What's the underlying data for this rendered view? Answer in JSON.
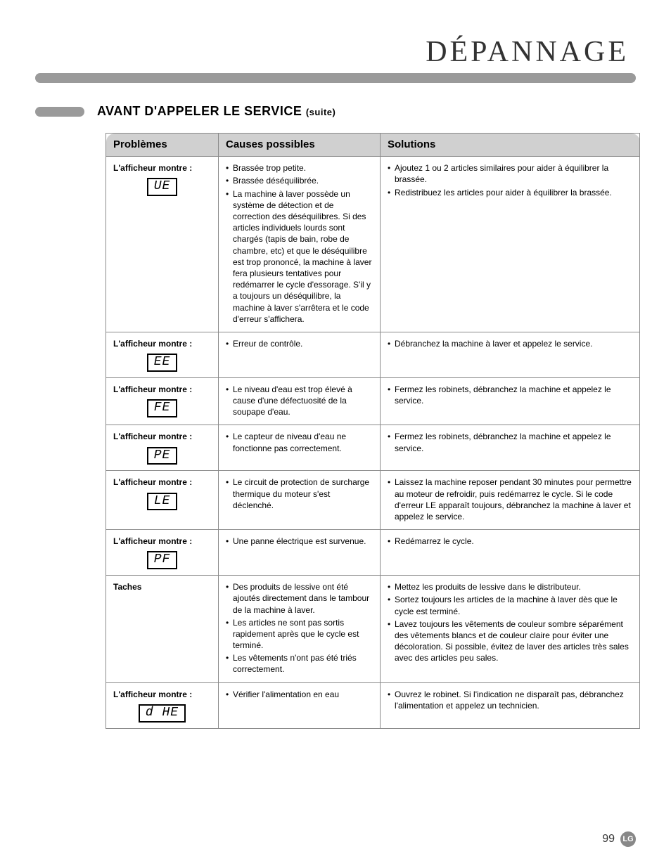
{
  "page_title": "DÉPANNAGE",
  "section_title": "AVANT D'APPELER LE SERVICE",
  "section_suffix": "(suite)",
  "headers": {
    "problems": "Problèmes",
    "causes": "Causes possibles",
    "solutions": "Solutions"
  },
  "label_display_shows": "L'afficheur montre :",
  "rows": [
    {
      "problem_label": "L'afficheur montre :",
      "error_code": "UE",
      "causes": [
        "Brassée trop petite.",
        "Brassée déséquilibrée.",
        "La machine à laver possède un système de détection et de correction des déséquilibres. Si des articles individuels lourds sont chargés (tapis de bain, robe de chambre, etc) et que le déséquilibre est trop prononcé, la machine à laver fera plusieurs tentatives pour redémarrer le cycle d'essorage. S'il y a toujours un déséquilibre, la machine à laver s'arrêtera et le code d'erreur s'affichera."
      ],
      "solutions": [
        "Ajoutez 1 ou 2 articles similaires pour aider à équilibrer la brassée.",
        "Redistribuez les articles pour aider à équilibrer la brassée."
      ]
    },
    {
      "problem_label": "L'afficheur montre :",
      "error_code": "EE",
      "causes": [
        "Erreur de contrôle."
      ],
      "solutions": [
        "Débranchez la machine à laver et appelez le service."
      ]
    },
    {
      "problem_label": "L'afficheur montre :",
      "error_code": "FE",
      "causes": [
        "Le niveau d'eau est trop élevé à cause d'une défectuosité de la soupape d'eau."
      ],
      "solutions": [
        "Fermez les robinets, débranchez la machine et appelez le service."
      ]
    },
    {
      "problem_label": "L'afficheur montre :",
      "error_code": "PE",
      "causes": [
        "Le capteur de niveau d'eau ne fonctionne pas correctement."
      ],
      "solutions": [
        "Fermez les robinets, débranchez la machine et appelez le service."
      ]
    },
    {
      "problem_label": "L'afficheur montre :",
      "error_code": "LE",
      "causes": [
        "Le circuit de protection de surcharge thermique du moteur s'est déclenché."
      ],
      "solutions": [
        "Laissez la machine reposer pendant 30 minutes pour permettre au moteur de refroidir, puis redémarrez le cycle. Si le code d'erreur LE apparaît toujours, débranchez la machine à laver et appelez le service."
      ]
    },
    {
      "problem_label": "L'afficheur montre :",
      "error_code": "PF",
      "causes": [
        "Une panne électrique est survenue."
      ],
      "solutions": [
        "Redémarrez le cycle."
      ]
    },
    {
      "problem_label": "Taches",
      "error_code": null,
      "causes": [
        "Des produits de lessive ont été ajoutés directement dans le tambour de la machine à laver.",
        "Les articles ne sont pas sortis rapidement après que le cycle est terminé.",
        "Les vêtements n'ont pas été triés correctement."
      ],
      "solutions": [
        "Mettez les produits de lessive dans le distributeur.",
        "Sortez toujours les articles de la machine à laver dès que le cycle est terminé.",
        "Lavez toujours les vêtements de couleur sombre séparément des vêtements blancs et de couleur claire pour éviter une décoloration. Si possible, évitez de laver des articles très sales avec des articles peu sales."
      ]
    },
    {
      "problem_label": "L'afficheur montre :",
      "error_code": "d HE",
      "causes": [
        "Vérifier l'alimentation en eau"
      ],
      "solutions": [
        "Ouvrez le robinet. Si l'indication ne disparaît pas, débranchez l'alimentation et appelez un technicien."
      ]
    }
  ],
  "page_number": "99",
  "logo_text": "LG",
  "colors": {
    "divider": "#9a9a9a",
    "header_bg": "#d0d0d0",
    "border": "#8a8a8a",
    "text": "#000000",
    "logo_bg": "#888888"
  },
  "fonts": {
    "title_family": "serif",
    "title_size_pt": 32,
    "section_size_pt": 14,
    "body_size_pt": 9
  }
}
